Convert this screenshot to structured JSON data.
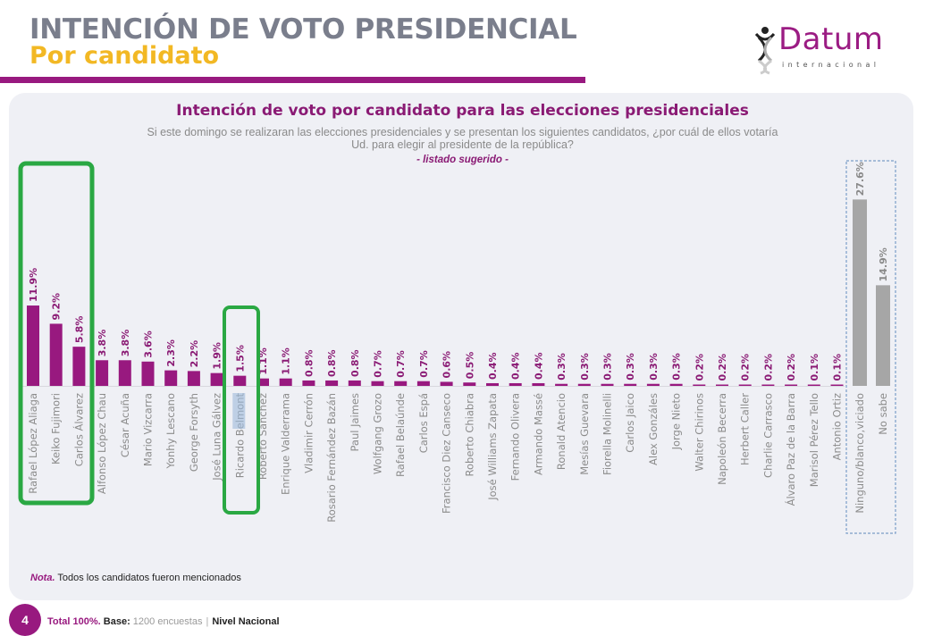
{
  "header": {
    "title": "INTENCIÓN DE VOTO PRESIDENCIAL",
    "subtitle": "Por candidato"
  },
  "logo": {
    "name": "Datum",
    "tagline": "internacional",
    "brand_color": "#98197f"
  },
  "colors": {
    "candidate_bar": "#98197f",
    "other_bar": "#a6a6a6",
    "highlight_box": "#2aa843",
    "dashed_box": "#7a9cc8",
    "title_gray": "#7a7e8c",
    "title_yellow": "#f2b824"
  },
  "chart_data": {
    "type": "bar",
    "title": "Intención de voto por candidato para las elecciones presidenciales",
    "question_line1": "Si este domingo se realizaran las elecciones presidenciales y se presentan los siguientes candidatos, ¿por cuál de ellos votaría",
    "question_line2": "Ud. para elegir al presidente de la república?",
    "note": "- listado sugerido -",
    "xlabel": "",
    "ylabel": "",
    "unit": "%",
    "ylim": [
      0,
      30
    ],
    "grid": false,
    "categories": [
      "Rafael López Aliaga",
      "Keiko Fujimori",
      "Carlos Álvarez",
      "Alfonso López Chau",
      "César Acuña",
      "Mario Vizcarra",
      "Yonhy Lescano",
      "George Forsyth",
      "José Luna Gálvez",
      "Ricardo Belmont",
      "Roberto Sánchez",
      "Enrique Valderrama",
      "Vladimir Cerrón",
      "Rosario Fernández Bazán",
      "Paul Jaimes",
      "Wolfgang Grozo",
      "Rafael Belaúnde",
      "Carlos Espá",
      "Francisco Diez Canseco",
      "Roberto Chiabra",
      "José Williams Zapata",
      "Fernando Olivera",
      "Armando Massé",
      "Ronald Atencio",
      "Mesías Guevara",
      "Fiorella Molinelli",
      "Carlos Jaico",
      "Alex Gonzáles",
      "Jorge Nieto",
      "Walter Chirinos",
      "Napoleón Becerra",
      "Herbert Caller",
      "Charlie Carrasco",
      "Álvaro Paz de la Barra",
      "Marisol Pérez Tello",
      "Antonio Ortiz",
      "Ninguno/blanco,viciado",
      "No sabe"
    ],
    "values": [
      11.9,
      9.2,
      5.8,
      3.8,
      3.8,
      3.6,
      2.3,
      2.2,
      1.9,
      1.5,
      1.1,
      1.1,
      0.8,
      0.8,
      0.8,
      0.7,
      0.7,
      0.7,
      0.6,
      0.5,
      0.4,
      0.4,
      0.4,
      0.3,
      0.3,
      0.3,
      0.3,
      0.3,
      0.3,
      0.2,
      0.2,
      0.2,
      0.2,
      0.2,
      0.1,
      0.1,
      27.6,
      14.9
    ],
    "labels": [
      "11.9%",
      "9.2%",
      "5.8%",
      "3.8%",
      "3.8%",
      "3.6%",
      "2.3%",
      "2.2%",
      "1.9%",
      "1.5%",
      "1.1%",
      "1.1%",
      "0.8%",
      "0.8%",
      "0.8%",
      "0.7%",
      "0.7%",
      "0.7%",
      "0.6%",
      "0.5%",
      "0.4%",
      "0.4%",
      "0.4%",
      "0.3%",
      "0.3%",
      "0.3%",
      "0.3%",
      "0.3%",
      "0.3%",
      "0.2%",
      "0.2%",
      "0.2%",
      "0.2%",
      "0.2%",
      "0.1%",
      "0.1%",
      "27.6%",
      "14.9%"
    ],
    "groups": {
      "candidates": [
        0,
        35
      ],
      "others": [
        36,
        37
      ]
    },
    "annotations": [
      {
        "type": "highlight-box",
        "covers": [
          "Rafael López Aliaga",
          "Keiko Fujimori",
          "Carlos Álvarez"
        ]
      },
      {
        "type": "highlight-box",
        "covers": [
          "Ricardo Belmont"
        ]
      },
      {
        "type": "dashed-box",
        "covers": [
          "Ninguno/blanco,viciado",
          "No sabe"
        ]
      },
      {
        "type": "text-selection",
        "text": "Belmont"
      }
    ]
  },
  "footnote": {
    "label": "Nota.",
    "text": " Todos los candidatos fueron mencionados"
  },
  "footer": {
    "page": "4",
    "total": "Total 100%.",
    "base_label": " Base:",
    "base_value": " 1200 encuestas",
    "separator": "|",
    "scope": "Nivel Nacional"
  }
}
